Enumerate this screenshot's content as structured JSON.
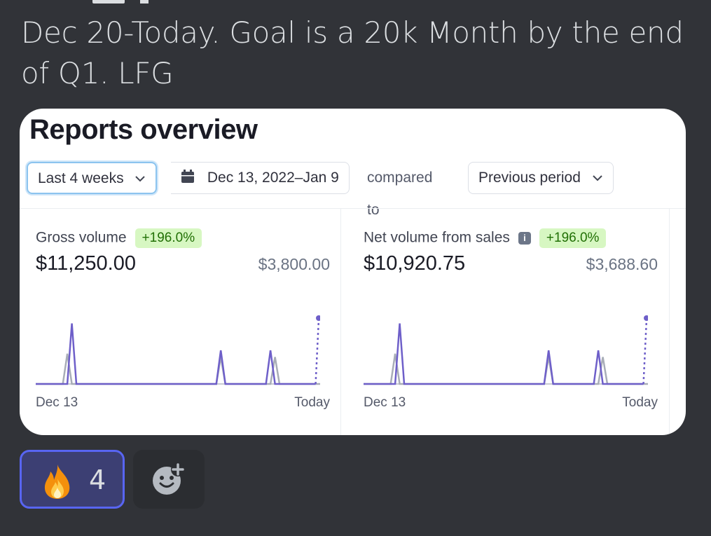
{
  "message": {
    "text": "Dec 20-Today. Goal is a 20k Month by the end of Q1. LFG"
  },
  "card": {
    "title": "Reports overview",
    "filters": {
      "range_label": "Last 4 weeks",
      "date_range": "Dec 13, 2022–Jan 9",
      "compared_to": "compared to",
      "comparison_label": "Previous period"
    },
    "panels": [
      {
        "label": "Gross volume",
        "change": "+196.0%",
        "value": "$11,250.00",
        "previous": "$3,800.00",
        "axis_start": "Dec 13",
        "axis_end": "Today",
        "has_info": false
      },
      {
        "label": "Net volume from sales",
        "change": "+196.0%",
        "value": "$10,920.75",
        "previous": "$3,688.60",
        "axis_start": "Dec 13",
        "axis_end": "Today",
        "has_info": true
      }
    ]
  },
  "chart_data": [
    {
      "type": "line",
      "title": "Gross volume",
      "series": [
        {
          "values": [
            0,
            0,
            0,
            0,
            0,
            0,
            0,
            0,
            9,
            0,
            0,
            0,
            0,
            0,
            0,
            0,
            0,
            0,
            0,
            0,
            0,
            0,
            0,
            0,
            0,
            0,
            0,
            0,
            0,
            0,
            0,
            0,
            0,
            0,
            0,
            0,
            0,
            0,
            0,
            0,
            0,
            5,
            0,
            0,
            0,
            0,
            0,
            0,
            0,
            0,
            0,
            0,
            5,
            0,
            0,
            0,
            0,
            0,
            0,
            0,
            0,
            0,
            0,
            10
          ]
        },
        {
          "values": [
            0,
            0,
            0,
            0,
            0,
            0,
            0,
            4.5,
            0,
            0,
            0,
            0,
            0,
            0,
            0,
            0,
            0,
            0,
            0,
            0,
            0,
            0,
            0,
            0,
            0,
            0,
            0,
            0,
            0,
            0,
            0,
            0,
            0,
            0,
            0,
            0,
            0,
            0,
            0,
            0,
            0,
            4,
            0,
            0,
            0,
            0,
            0,
            0,
            0,
            0,
            0,
            0,
            0,
            4,
            0,
            0,
            0,
            0,
            0,
            0,
            0,
            0,
            0,
            0
          ]
        }
      ],
      "colors": {
        "current": "#6e5fc9",
        "previous": "#a8adb7"
      },
      "xlabel": "",
      "ylabel": ""
    },
    {
      "type": "line",
      "title": "Net volume from sales",
      "series": [
        {
          "values": [
            0,
            0,
            0,
            0,
            0,
            0,
            0,
            0,
            9,
            0,
            0,
            0,
            0,
            0,
            0,
            0,
            0,
            0,
            0,
            0,
            0,
            0,
            0,
            0,
            0,
            0,
            0,
            0,
            0,
            0,
            0,
            0,
            0,
            0,
            0,
            0,
            0,
            0,
            0,
            0,
            0,
            5,
            0,
            0,
            0,
            0,
            0,
            0,
            0,
            0,
            0,
            0,
            5,
            0,
            0,
            0,
            0,
            0,
            0,
            0,
            0,
            0,
            0,
            10
          ]
        },
        {
          "values": [
            0,
            0,
            0,
            0,
            0,
            0,
            0,
            4.5,
            0,
            0,
            0,
            0,
            0,
            0,
            0,
            0,
            0,
            0,
            0,
            0,
            0,
            0,
            0,
            0,
            0,
            0,
            0,
            0,
            0,
            0,
            0,
            0,
            0,
            0,
            0,
            0,
            0,
            0,
            0,
            0,
            0,
            4,
            0,
            0,
            0,
            0,
            0,
            0,
            0,
            0,
            0,
            0,
            0,
            4,
            0,
            0,
            0,
            0,
            0,
            0,
            0,
            0,
            0,
            0
          ]
        }
      ],
      "colors": {
        "current": "#6e5fc9",
        "previous": "#a8adb7"
      },
      "xlabel": "",
      "ylabel": ""
    }
  ],
  "reactions": [
    {
      "emoji": "fire-icon",
      "count": "4"
    }
  ]
}
